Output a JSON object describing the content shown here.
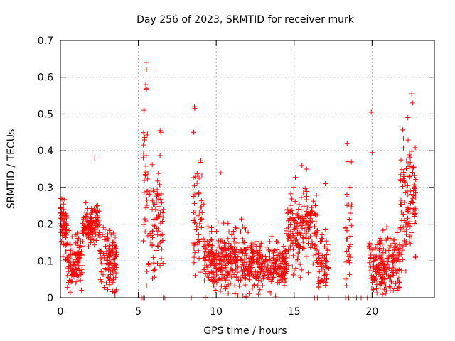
{
  "chart_data": {
    "type": "scatter",
    "title": "Day 256 of 2023, SRMTID for receiver murk",
    "xlabel": "GPS time / hours",
    "ylabel": "SRMTID / TECUs",
    "xlim": [
      0,
      24
    ],
    "ylim": [
      0,
      0.7
    ],
    "grid": true,
    "marker": "+",
    "marker_color": "#ff0000",
    "x_ticks": [
      0,
      5,
      10,
      15,
      20
    ],
    "x_tick_labels": [
      "0",
      "5",
      "10",
      "15",
      "20"
    ],
    "y_ticks": [
      0,
      0.1,
      0.2,
      0.3,
      0.4,
      0.5,
      0.6,
      0.7
    ],
    "y_tick_labels": [
      "0",
      "0.1",
      "0.2",
      "0.3",
      "0.4",
      "0.5",
      "0.6",
      "0.7"
    ],
    "clusters": [
      {
        "x_start": 0.0,
        "x_end": 0.4,
        "y_center": 0.19,
        "y_spread": 0.07,
        "count": 70
      },
      {
        "x_start": 0.4,
        "x_end": 1.4,
        "y_center": 0.1,
        "y_spread": 0.06,
        "count": 110
      },
      {
        "x_start": 1.4,
        "x_end": 2.5,
        "y_center": 0.2,
        "y_spread": 0.05,
        "count": 120
      },
      {
        "x_start": 2.5,
        "x_end": 3.6,
        "y_center": 0.1,
        "y_spread": 0.07,
        "count": 120
      },
      {
        "x_start": 5.3,
        "x_end": 5.6,
        "y_center": 0.3,
        "y_spread": 0.25,
        "count": 30
      },
      {
        "x_start": 5.6,
        "x_end": 6.6,
        "y_center": 0.22,
        "y_spread": 0.14,
        "count": 80
      },
      {
        "x_start": 8.5,
        "x_end": 9.2,
        "y_center": 0.22,
        "y_spread": 0.14,
        "count": 60
      },
      {
        "x_start": 9.2,
        "x_end": 12.0,
        "y_center": 0.1,
        "y_spread": 0.08,
        "count": 300
      },
      {
        "x_start": 12.0,
        "x_end": 14.5,
        "y_center": 0.09,
        "y_spread": 0.06,
        "count": 260
      },
      {
        "x_start": 14.5,
        "x_end": 16.5,
        "y_center": 0.18,
        "y_spread": 0.1,
        "count": 200
      },
      {
        "x_start": 16.5,
        "x_end": 17.3,
        "y_center": 0.1,
        "y_spread": 0.07,
        "count": 60
      },
      {
        "x_start": 18.3,
        "x_end": 18.7,
        "y_center": 0.18,
        "y_spread": 0.14,
        "count": 30
      },
      {
        "x_start": 19.8,
        "x_end": 21.8,
        "y_center": 0.09,
        "y_spread": 0.08,
        "count": 200
      },
      {
        "x_start": 21.8,
        "x_end": 22.8,
        "y_center": 0.25,
        "y_spread": 0.15,
        "count": 120
      }
    ],
    "extreme_points": [
      {
        "x": 5.5,
        "y": 0.64
      },
      {
        "x": 5.52,
        "y": 0.62
      },
      {
        "x": 5.48,
        "y": 0.58
      },
      {
        "x": 5.5,
        "y": 0.57
      },
      {
        "x": 8.6,
        "y": 0.52
      },
      {
        "x": 8.62,
        "y": 0.515
      },
      {
        "x": 8.55,
        "y": 0.45
      },
      {
        "x": 2.2,
        "y": 0.38
      },
      {
        "x": 18.4,
        "y": 0.42
      },
      {
        "x": 18.45,
        "y": 0.37
      },
      {
        "x": 19.95,
        "y": 0.505
      },
      {
        "x": 20.0,
        "y": 0.395
      },
      {
        "x": 22.55,
        "y": 0.555
      },
      {
        "x": 22.6,
        "y": 0.53
      },
      {
        "x": 22.3,
        "y": 0.49
      },
      {
        "x": 6.4,
        "y": 0.455
      },
      {
        "x": 6.45,
        "y": 0.45
      },
      {
        "x": 10.3,
        "y": 0.34
      },
      {
        "x": 15.8,
        "y": 0.35
      },
      {
        "x": 15.5,
        "y": 0.36
      },
      {
        "x": 17.0,
        "y": 0.31
      }
    ],
    "zero_points_x": [
      5.2,
      5.3,
      5.4,
      6.6,
      6.7,
      8.4,
      16.3,
      16.5,
      17.2,
      18.3,
      18.5,
      19.0,
      19.1,
      19.3,
      19.7
    ]
  }
}
